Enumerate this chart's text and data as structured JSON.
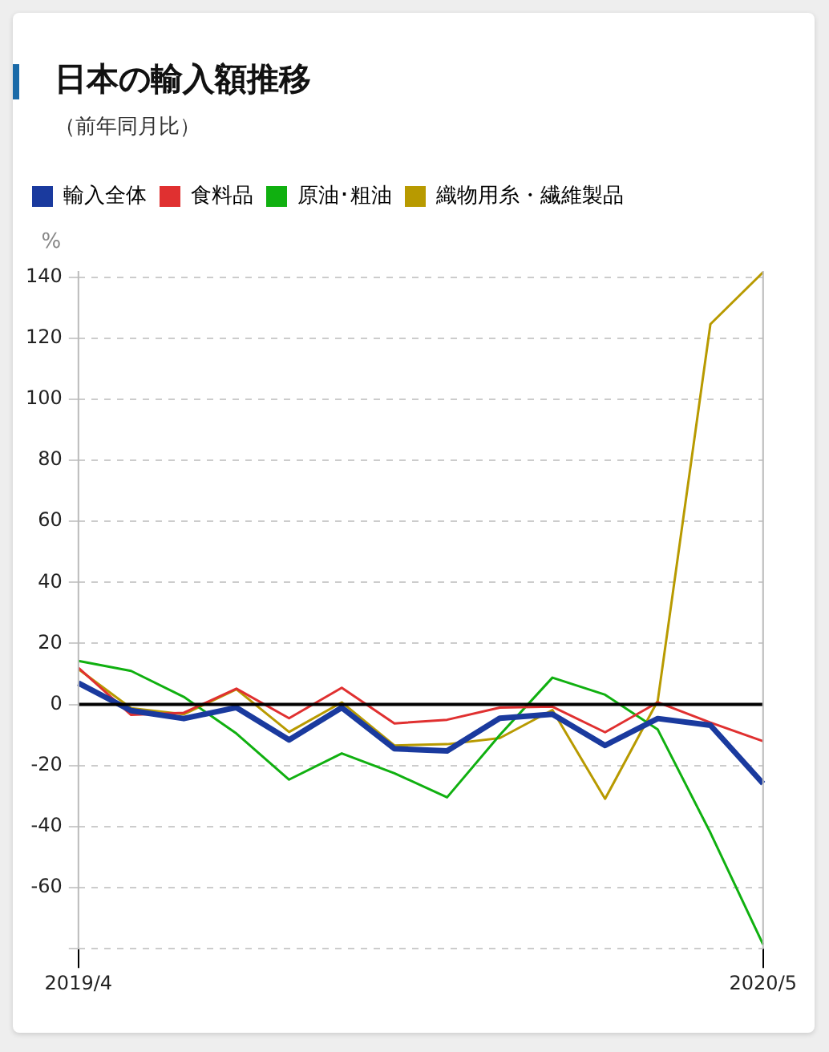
{
  "chart_data": {
    "type": "line",
    "title": "日本の輸入額推移",
    "subtitle": "（前年同月比）",
    "ylabel": "%",
    "categories": [
      "2019/4",
      null,
      null,
      null,
      null,
      null,
      null,
      null,
      null,
      null,
      null,
      null,
      null,
      "2020/5"
    ],
    "series": [
      {
        "name": "輸入全体",
        "color": "#1a3a9e",
        "values": [
          7,
          -2,
          -4.6,
          -1,
          -11.6,
          -1,
          -14.5,
          -15.2,
          -4.5,
          -3.2,
          -13.4,
          -4.6,
          -6.8,
          -25.9
        ]
      },
      {
        "name": "食料品",
        "color": "#e03030",
        "values": [
          12,
          -3.4,
          -2.7,
          5.2,
          -4.5,
          5.5,
          -6.2,
          -5,
          -1,
          -0.7,
          -9.1,
          0.7,
          -5.9,
          -12
        ]
      },
      {
        "name": "原油･粗油",
        "color": "#10b010",
        "values": [
          14.3,
          11,
          2.5,
          -9.5,
          -24.6,
          -16,
          -22.5,
          -30.4,
          -10,
          8.8,
          3.2,
          -8.2,
          -42,
          -78.6
        ]
      },
      {
        "name": "織物用糸・繊維製品",
        "color": "#b89a00",
        "values": [
          11.6,
          -1.2,
          -3.2,
          5,
          -9,
          0.7,
          -13.4,
          -13,
          -11,
          -1.8,
          -30.9,
          1.2,
          124.6,
          141.6
        ]
      }
    ],
    "ylim": [
      -80,
      142
    ],
    "yticks": [
      {
        "value": -80,
        "label": null
      },
      -60,
      -40,
      -20,
      0,
      20,
      40,
      60,
      80,
      100,
      120,
      140
    ],
    "grid": "y",
    "legend": "top left",
    "marker": "none",
    "line_style": "solid",
    "ref_lines": [
      {
        "axis": "y",
        "value": 0,
        "color": "#000000"
      }
    ]
  }
}
